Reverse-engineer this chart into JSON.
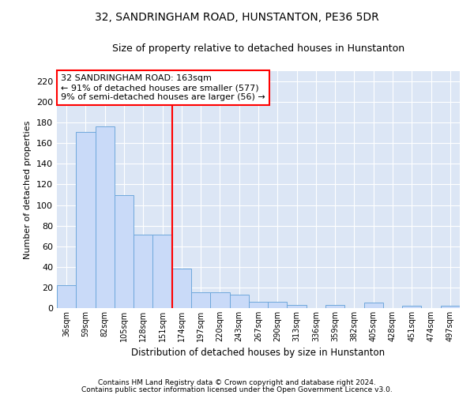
{
  "title": "32, SANDRINGHAM ROAD, HUNSTANTON, PE36 5DR",
  "subtitle": "Size of property relative to detached houses in Hunstanton",
  "xlabel": "Distribution of detached houses by size in Hunstanton",
  "ylabel": "Number of detached properties",
  "categories": [
    "36sqm",
    "59sqm",
    "82sqm",
    "105sqm",
    "128sqm",
    "151sqm",
    "174sqm",
    "197sqm",
    "220sqm",
    "243sqm",
    "267sqm",
    "290sqm",
    "313sqm",
    "336sqm",
    "359sqm",
    "382sqm",
    "405sqm",
    "428sqm",
    "451sqm",
    "474sqm",
    "497sqm"
  ],
  "values": [
    22,
    171,
    176,
    110,
    71,
    71,
    38,
    15,
    15,
    13,
    6,
    6,
    3,
    0,
    3,
    0,
    5,
    0,
    2,
    0,
    2
  ],
  "bar_color": "#c9daf8",
  "bar_edge_color": "#6fa8dc",
  "vline_x": 6,
  "vline_color": "red",
  "annotation_line1": "32 SANDRINGHAM ROAD: 163sqm",
  "annotation_line2": "← 91% of detached houses are smaller (577)",
  "annotation_line3": "9% of semi-detached houses are larger (56) →",
  "annotation_box_color": "white",
  "annotation_box_edge": "red",
  "ylim": [
    0,
    230
  ],
  "yticks": [
    0,
    20,
    40,
    60,
    80,
    100,
    120,
    140,
    160,
    180,
    200,
    220
  ],
  "footer1": "Contains HM Land Registry data © Crown copyright and database right 2024.",
  "footer2": "Contains public sector information licensed under the Open Government Licence v3.0.",
  "bg_color": "#dce6f5",
  "fig_bg_color": "#ffffff",
  "title_fontsize": 10,
  "subtitle_fontsize": 9,
  "footer_fontsize": 6.5
}
